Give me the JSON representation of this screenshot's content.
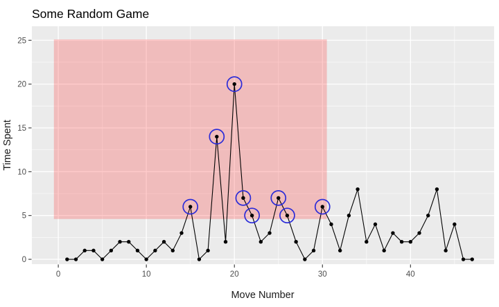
{
  "title": "Some Random Game",
  "chart_data": {
    "type": "line",
    "title": "Some Random Game",
    "xlabel": "Move Number",
    "ylabel": "Time Spent",
    "x": [
      1,
      2,
      3,
      4,
      5,
      6,
      7,
      8,
      9,
      10,
      11,
      12,
      13,
      14,
      15,
      16,
      17,
      18,
      19,
      20,
      21,
      22,
      23,
      24,
      25,
      26,
      27,
      28,
      29,
      30,
      31,
      32,
      33,
      34,
      35,
      36,
      37,
      38,
      39,
      40,
      41,
      42,
      43,
      44,
      45,
      46,
      47
    ],
    "y": [
      0,
      0,
      1,
      1,
      0,
      1,
      2,
      2,
      1,
      0,
      1,
      2,
      1,
      3,
      6,
      0,
      1,
      14,
      2,
      20,
      7,
      5,
      2,
      3,
      7,
      5,
      2,
      0,
      1,
      6,
      4,
      1,
      5,
      8,
      2,
      4,
      1,
      3,
      2,
      2,
      3,
      5,
      8,
      1,
      4,
      0,
      0
    ],
    "circled_x": [
      15,
      18,
      20,
      21,
      22,
      25,
      26,
      30
    ],
    "highlight_rect": {
      "xmin": -0.5,
      "xmax": 30.5,
      "ymin": 4.6,
      "ymax": 25.1
    },
    "x_ticks": [
      0,
      10,
      20,
      30,
      40
    ],
    "y_ticks": [
      0,
      5,
      10,
      15,
      20,
      25
    ],
    "x_minor_ticks": [
      5,
      15,
      25,
      35,
      45
    ],
    "y_minor_ticks": [
      2.5,
      7.5,
      12.5,
      17.5,
      22.5
    ],
    "xlim": [
      -3,
      49.5
    ],
    "ylim": [
      -0.55,
      26.6
    ],
    "grid": true,
    "legend_position": "none",
    "colors": {
      "panel_bg": "#EBEBEB",
      "grid_major": "#FFFFFF",
      "grid_minor": "#FFFFFF",
      "series_line": "#000000",
      "point": "#000000",
      "circle_stroke": "#2B2BD8",
      "highlight_fill": "#FF4646",
      "highlight_alpha": 0.28,
      "tick_mark": "#333333",
      "tick_label": "#4D4D4D",
      "axis_title": "#1A1A1A",
      "title": "#000000"
    }
  }
}
